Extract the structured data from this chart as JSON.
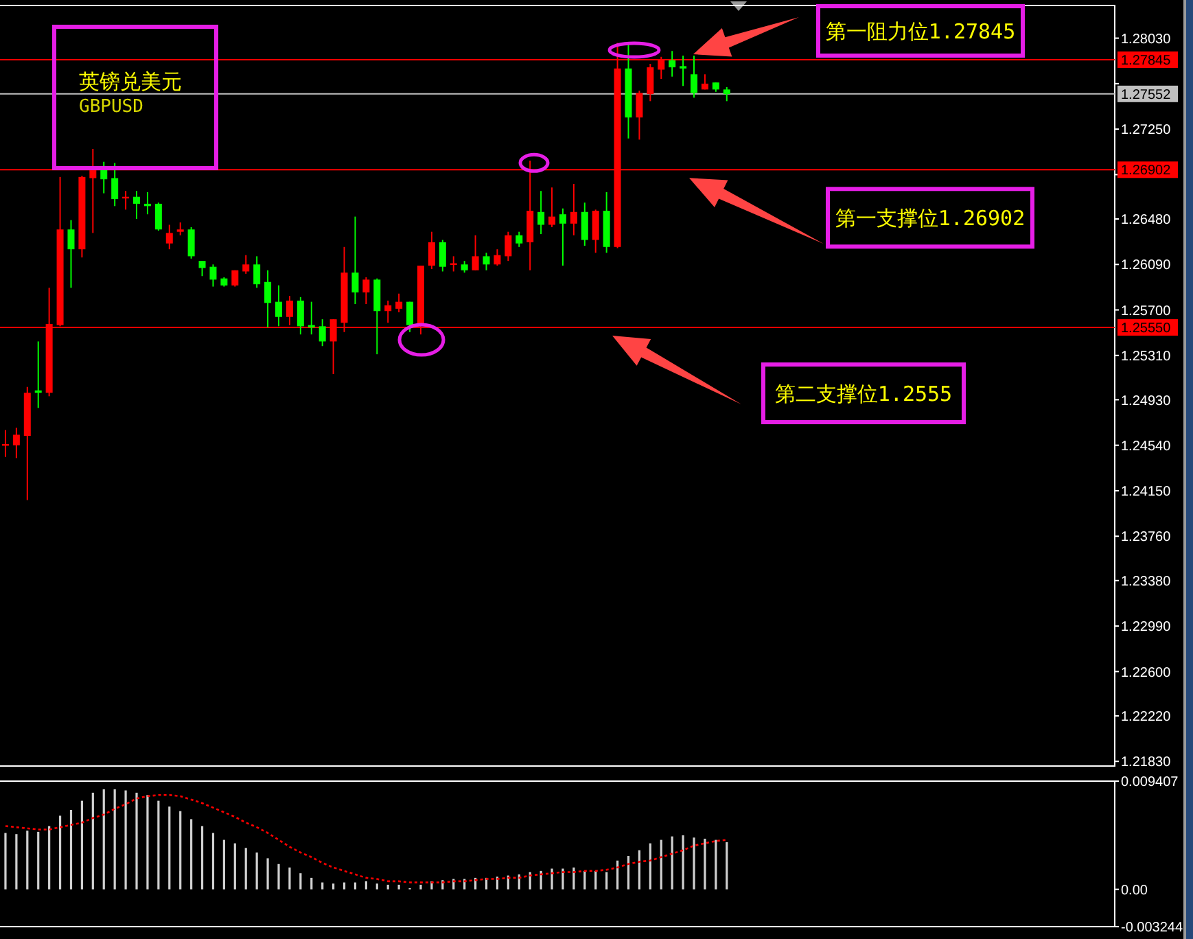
{
  "chart_data": [
    {
      "type": "candlestick",
      "title": "英镑兑美元",
      "subtitle": "GBPUSD",
      "categories": [
        null,
        null,
        null,
        null,
        null,
        null,
        null,
        null,
        null,
        null,
        null,
        null,
        null,
        null,
        null,
        null,
        null,
        null,
        null,
        null,
        null,
        null,
        null,
        null,
        null,
        null,
        null,
        null,
        null,
        null,
        null,
        null,
        null,
        null,
        null,
        null,
        null,
        null,
        null,
        null,
        null,
        null,
        null,
        null,
        null,
        null,
        null,
        null,
        null,
        null,
        null,
        null,
        null,
        null,
        null,
        null,
        null,
        null,
        null,
        null,
        null,
        null,
        null,
        null,
        null,
        null,
        null,
        null,
        null,
        null,
        null,
        null,
        null,
        null,
        null,
        null,
        null,
        null,
        null,
        null,
        null,
        null,
        null,
        null,
        null,
        null,
        null,
        null,
        null,
        null,
        null,
        null,
        null,
        null,
        null,
        null,
        null,
        null,
        null,
        null,
        null,
        null
      ],
      "ohlc": [
        [
          1.2454,
          1.2467,
          1.2444,
          1.2455
        ],
        [
          1.2454,
          1.2469,
          1.2443,
          1.2463
        ],
        [
          1.2462,
          1.2504,
          1.2407,
          1.2499
        ],
        [
          1.2501,
          1.2543,
          1.2486,
          1.2499
        ],
        [
          1.2499,
          1.2589,
          1.2496,
          1.2558
        ],
        [
          1.2557,
          1.2684,
          1.2556,
          1.2639
        ],
        [
          1.2639,
          1.2647,
          1.2589,
          1.2622
        ],
        [
          1.2622,
          1.2685,
          1.2615,
          1.2684
        ],
        [
          1.2683,
          1.2708,
          1.2636,
          1.2691
        ],
        [
          1.2691,
          1.2697,
          1.267,
          1.2682
        ],
        [
          1.2683,
          1.2696,
          1.2659,
          1.2665
        ],
        [
          1.2666,
          1.2672,
          1.2656,
          1.2667
        ],
        [
          1.2667,
          1.2672,
          1.2648,
          1.2661
        ],
        [
          1.2661,
          1.2671,
          1.2652,
          1.2659
        ],
        [
          1.2661,
          1.2662,
          1.2638,
          1.2639
        ],
        [
          1.2627,
          1.2643,
          1.2622,
          1.2636
        ],
        [
          1.2637,
          1.2645,
          1.2634,
          1.2639
        ],
        [
          1.2639,
          1.2641,
          1.2614,
          1.2616
        ],
        [
          1.2612,
          1.2612,
          1.2599,
          1.2606
        ],
        [
          1.2607,
          1.2609,
          1.259,
          1.2596
        ],
        [
          1.2597,
          1.2598,
          1.259,
          1.2591
        ],
        [
          1.2591,
          1.2604,
          1.259,
          1.2604
        ],
        [
          1.2603,
          1.2617,
          1.2601,
          1.2609
        ],
        [
          1.2609,
          1.2616,
          1.2589,
          1.2592
        ],
        [
          1.2594,
          1.2604,
          1.2555,
          1.2576
        ],
        [
          1.2577,
          1.2591,
          1.2556,
          1.2564
        ],
        [
          1.2564,
          1.2582,
          1.2557,
          1.2578
        ],
        [
          1.2578,
          1.2581,
          1.2549,
          1.2556
        ],
        [
          1.2557,
          1.2577,
          1.2549,
          1.2555
        ],
        [
          1.2556,
          1.2562,
          1.2539,
          1.2543
        ],
        [
          1.2543,
          1.2562,
          1.2515,
          1.2562
        ],
        [
          1.2559,
          1.2624,
          1.2551,
          1.2602
        ],
        [
          1.2602,
          1.265,
          1.2575,
          1.2585
        ],
        [
          1.2585,
          1.2598,
          1.2575,
          1.2596
        ],
        [
          1.2596,
          1.2597,
          1.2532,
          1.2569
        ],
        [
          1.2569,
          1.2578,
          1.2559,
          1.2574
        ],
        [
          1.2571,
          1.2584,
          1.2568,
          1.2577
        ],
        [
          1.2577,
          1.2577,
          1.2551,
          1.2557
        ],
        [
          1.2557,
          1.2608,
          1.2549,
          1.2608
        ],
        [
          1.2608,
          1.2637,
          1.2605,
          1.2628
        ],
        [
          1.2628,
          1.263,
          1.2603,
          1.2607
        ],
        [
          1.2609,
          1.2616,
          1.2603,
          1.261
        ],
        [
          1.2609,
          1.2612,
          1.2602,
          1.2604
        ],
        [
          1.2604,
          1.2634,
          1.2604,
          1.2616
        ],
        [
          1.2616,
          1.2619,
          1.2604,
          1.2609
        ],
        [
          1.2609,
          1.2622,
          1.2608,
          1.2617
        ],
        [
          1.2616,
          1.2637,
          1.2612,
          1.2634
        ],
        [
          1.2634,
          1.2637,
          1.2624,
          1.2627
        ],
        [
          1.2628,
          1.2698,
          1.2604,
          1.2655
        ],
        [
          1.2654,
          1.2672,
          1.2635,
          1.2643
        ],
        [
          1.2643,
          1.2675,
          1.2641,
          1.265
        ],
        [
          1.2652,
          1.2657,
          1.2608,
          1.2644
        ],
        [
          1.2644,
          1.2678,
          1.2634,
          1.2654
        ],
        [
          1.2654,
          1.2662,
          1.2625,
          1.263
        ],
        [
          1.263,
          1.2656,
          1.2619,
          1.2655
        ],
        [
          1.2655,
          1.2671,
          1.2619,
          1.2624
        ],
        [
          1.2624,
          1.2799,
          1.2623,
          1.2777
        ],
        [
          1.2777,
          1.2799,
          1.2717,
          1.2735
        ],
        [
          1.2735,
          1.2758,
          1.2716,
          1.2756
        ],
        [
          1.2755,
          1.2781,
          1.2749,
          1.2778
        ],
        [
          1.2776,
          1.2787,
          1.2768,
          1.2784
        ],
        [
          1.2784,
          1.2792,
          1.277,
          1.2778
        ],
        [
          1.2779,
          1.2788,
          1.2762,
          1.2777
        ],
        [
          1.2772,
          1.2788,
          1.2752,
          1.2756
        ],
        [
          1.2759,
          1.2772,
          1.2759,
          1.2764
        ],
        [
          1.2765,
          1.2765,
          1.2757,
          1.2759
        ],
        [
          1.2759,
          1.2761,
          1.2749,
          1.2755
        ],
        null,
        null,
        null,
        null,
        null,
        null,
        null,
        null,
        null,
        null,
        null,
        null,
        null,
        null,
        null,
        null,
        null,
        null,
        null,
        null,
        null,
        null,
        null,
        null,
        null,
        null,
        null,
        null,
        null,
        null,
        null,
        null,
        null,
        null,
        null
      ],
      "colors": [
        "#ff0000",
        "#ff0000",
        "#ff0000",
        "#00ff00",
        "#ff0000",
        "#ff0000",
        "#00ff00",
        "#ff0000",
        "#ff0000",
        "#00ff00",
        "#00ff00",
        "#ff0000",
        "#00ff00",
        "#00ff00",
        "#00ff00",
        "#ff0000",
        "#ff0000",
        "#00ff00",
        "#00ff00",
        "#00ff00",
        "#00ff00",
        "#ff0000",
        "#ff0000",
        "#00ff00",
        "#00ff00",
        "#00ff00",
        "#ff0000",
        "#00ff00",
        "#00ff00",
        "#00ff00",
        "#ff0000",
        "#ff0000",
        "#00ff00",
        "#ff0000",
        "#00ff00",
        "#ff0000",
        "#ff0000",
        "#00ff00",
        "#ff0000",
        "#ff0000",
        "#00ff00",
        "#ff0000",
        "#00ff00",
        "#ff0000",
        "#00ff00",
        "#ff0000",
        "#ff0000",
        "#00ff00",
        "#ff0000",
        "#00ff00",
        "#ff0000",
        "#00ff00",
        "#ff0000",
        "#00ff00",
        "#ff0000",
        "#00ff00",
        "#ff0000",
        "#00ff00",
        "#ff0000",
        "#ff0000",
        "#ff0000",
        "#00ff00",
        "#00ff00",
        "#00ff00",
        "#ff0000",
        "#00ff00",
        "#00ff00",
        null,
        null,
        null,
        null,
        null,
        null,
        null,
        null,
        null,
        null,
        null,
        null,
        null,
        null,
        null,
        null,
        null,
        null,
        null,
        null,
        null,
        null,
        null,
        null,
        null,
        null,
        null,
        null,
        null,
        null,
        null,
        null,
        null,
        null,
        null
      ],
      "ylim": [
        1.2179,
        1.2831
      ],
      "yticks": [
        {
          "value": 1.2803,
          "label": "1.28030"
        },
        {
          "value": 1.2764,
          "label": null
        },
        {
          "value": 1.2725,
          "label": "1.27250"
        },
        {
          "value": 1.2686,
          "label": null
        },
        {
          "value": 1.2648,
          "label": "1.26480"
        },
        {
          "value": 1.2609,
          "label": "1.26090"
        },
        {
          "value": 1.257,
          "label": "1.25700"
        },
        {
          "value": 1.2531,
          "label": "1.25310"
        },
        {
          "value": 1.2493,
          "label": "1.24930"
        },
        {
          "value": 1.2454,
          "label": "1.24540"
        },
        {
          "value": 1.2415,
          "label": "1.24150"
        },
        {
          "value": 1.2376,
          "label": "1.23760"
        },
        {
          "value": 1.2338,
          "label": "1.23380"
        },
        {
          "value": 1.2299,
          "label": "1.22990"
        },
        {
          "value": 1.226,
          "label": "1.22600"
        },
        {
          "value": 1.2222,
          "label": "1.22220"
        },
        {
          "value": 1.2183,
          "label": "1.21830"
        }
      ],
      "ref_lines": [
        {
          "axis": "y",
          "value": 1.27845,
          "label": "1.27845",
          "color": "#ff0000"
        },
        {
          "axis": "y",
          "value": 1.27552,
          "label": "1.27552",
          "color": "#c0c0c0"
        },
        {
          "axis": "y",
          "value": 1.26902,
          "label": "1.26902",
          "color": "#ff0000"
        },
        {
          "axis": "y",
          "value": 1.2555,
          "label": "1.25550",
          "color": "#ff0000"
        }
      ],
      "annotations": [
        {
          "text": "第一阻力位1.27845",
          "y": 1.27845
        },
        {
          "text": "第一支撑位1.26902",
          "y": 1.26902
        },
        {
          "text": "第二支撑位1.2555",
          "y": 1.2555
        }
      ]
    },
    {
      "type": "bar",
      "categories": [
        null,
        null,
        null,
        null,
        null,
        null,
        null,
        null,
        null,
        null,
        null,
        null,
        null,
        null,
        null,
        null,
        null,
        null,
        null,
        null,
        null,
        null,
        null,
        null,
        null,
        null,
        null,
        null,
        null,
        null,
        null,
        null,
        null,
        null,
        null,
        null,
        null,
        null,
        null,
        null,
        null,
        null,
        null,
        null,
        null,
        null,
        null,
        null,
        null,
        null,
        null,
        null,
        null,
        null,
        null,
        null,
        null,
        null,
        null,
        null,
        null,
        null,
        null,
        null,
        null,
        null,
        null,
        null,
        null,
        null,
        null,
        null,
        null,
        null,
        null,
        null,
        null,
        null,
        null,
        null,
        null,
        null,
        null,
        null,
        null,
        null,
        null,
        null,
        null,
        null,
        null,
        null,
        null,
        null,
        null,
        null,
        null,
        null,
        null,
        null,
        null,
        null
      ],
      "series": [
        {
          "type": "bar",
          "color": "#d0d0d0",
          "values": [
            0.0049,
            0.0048,
            0.0051,
            0.005,
            0.0055,
            0.0064,
            0.0069,
            0.0077,
            0.0084,
            0.0087,
            0.0087,
            0.0086,
            0.0084,
            0.0082,
            0.0077,
            0.0072,
            0.0068,
            0.0061,
            0.0055,
            0.0049,
            0.0043,
            0.004,
            0.0036,
            0.0032,
            0.0027,
            0.0022,
            0.0019,
            0.0014,
            0.001,
            0.0006,
            0.0005,
            0.0006,
            0.0006,
            0.0007,
            0.0005,
            0.0004,
            0.0004,
            0.0001,
            0.0004,
            0.0007,
            0.0008,
            0.0009,
            0.0009,
            0.001,
            0.001,
            0.0011,
            0.0012,
            0.0013,
            0.0015,
            0.0016,
            0.0018,
            0.0018,
            0.0019,
            0.0016,
            0.0016,
            0.0015,
            0.0025,
            0.0029,
            0.0034,
            0.004,
            0.0043,
            0.0046,
            0.0047,
            0.0045,
            0.0044,
            0.0043,
            0.0041,
            null,
            null,
            null,
            null,
            null,
            null,
            null,
            null,
            null,
            null,
            null,
            null,
            null,
            null,
            null,
            null,
            null,
            null,
            null,
            null,
            null,
            null,
            null,
            null,
            null,
            null,
            null,
            null,
            null,
            null,
            null,
            null,
            null,
            null,
            null
          ]
        },
        {
          "type": "line",
          "color": "#ff0000",
          "line_style": "dotted",
          "values": [
            0.0055,
            0.0054,
            0.0053,
            0.0052,
            0.0052,
            0.0054,
            0.0056,
            0.0058,
            0.0062,
            0.0065,
            0.007,
            0.0074,
            0.0079,
            0.0081,
            0.0082,
            0.0082,
            0.0081,
            0.0078,
            0.0075,
            0.0071,
            0.0067,
            0.0063,
            0.0058,
            0.0054,
            0.0049,
            0.0043,
            0.0037,
            0.0032,
            0.0028,
            0.0023,
            0.0019,
            0.0016,
            0.0013,
            0.001,
            0.0009,
            0.0007,
            0.0007,
            0.0006,
            0.0006,
            0.0006,
            0.0006,
            0.0007,
            0.0007,
            0.0008,
            0.0009,
            0.0009,
            0.001,
            0.001,
            0.0012,
            0.0013,
            0.0014,
            0.0015,
            0.0015,
            0.0016,
            0.0016,
            0.0017,
            0.0019,
            0.0022,
            0.0024,
            0.0025,
            0.0028,
            0.0031,
            0.0034,
            0.0038,
            0.004,
            0.0042,
            0.0043,
            null,
            null,
            null,
            null,
            null,
            null,
            null,
            null,
            null,
            null,
            null,
            null,
            null,
            null,
            null,
            null,
            null,
            null,
            null,
            null,
            null,
            null,
            null,
            null,
            null,
            null,
            null,
            null,
            null,
            null,
            null,
            null,
            null,
            null,
            null
          ]
        }
      ],
      "ylim": [
        -0.003244,
        0.009407
      ],
      "yticks": [
        0.009407,
        {
          "value": 0,
          "label": "0.00"
        },
        -0.003244
      ]
    }
  ]
}
